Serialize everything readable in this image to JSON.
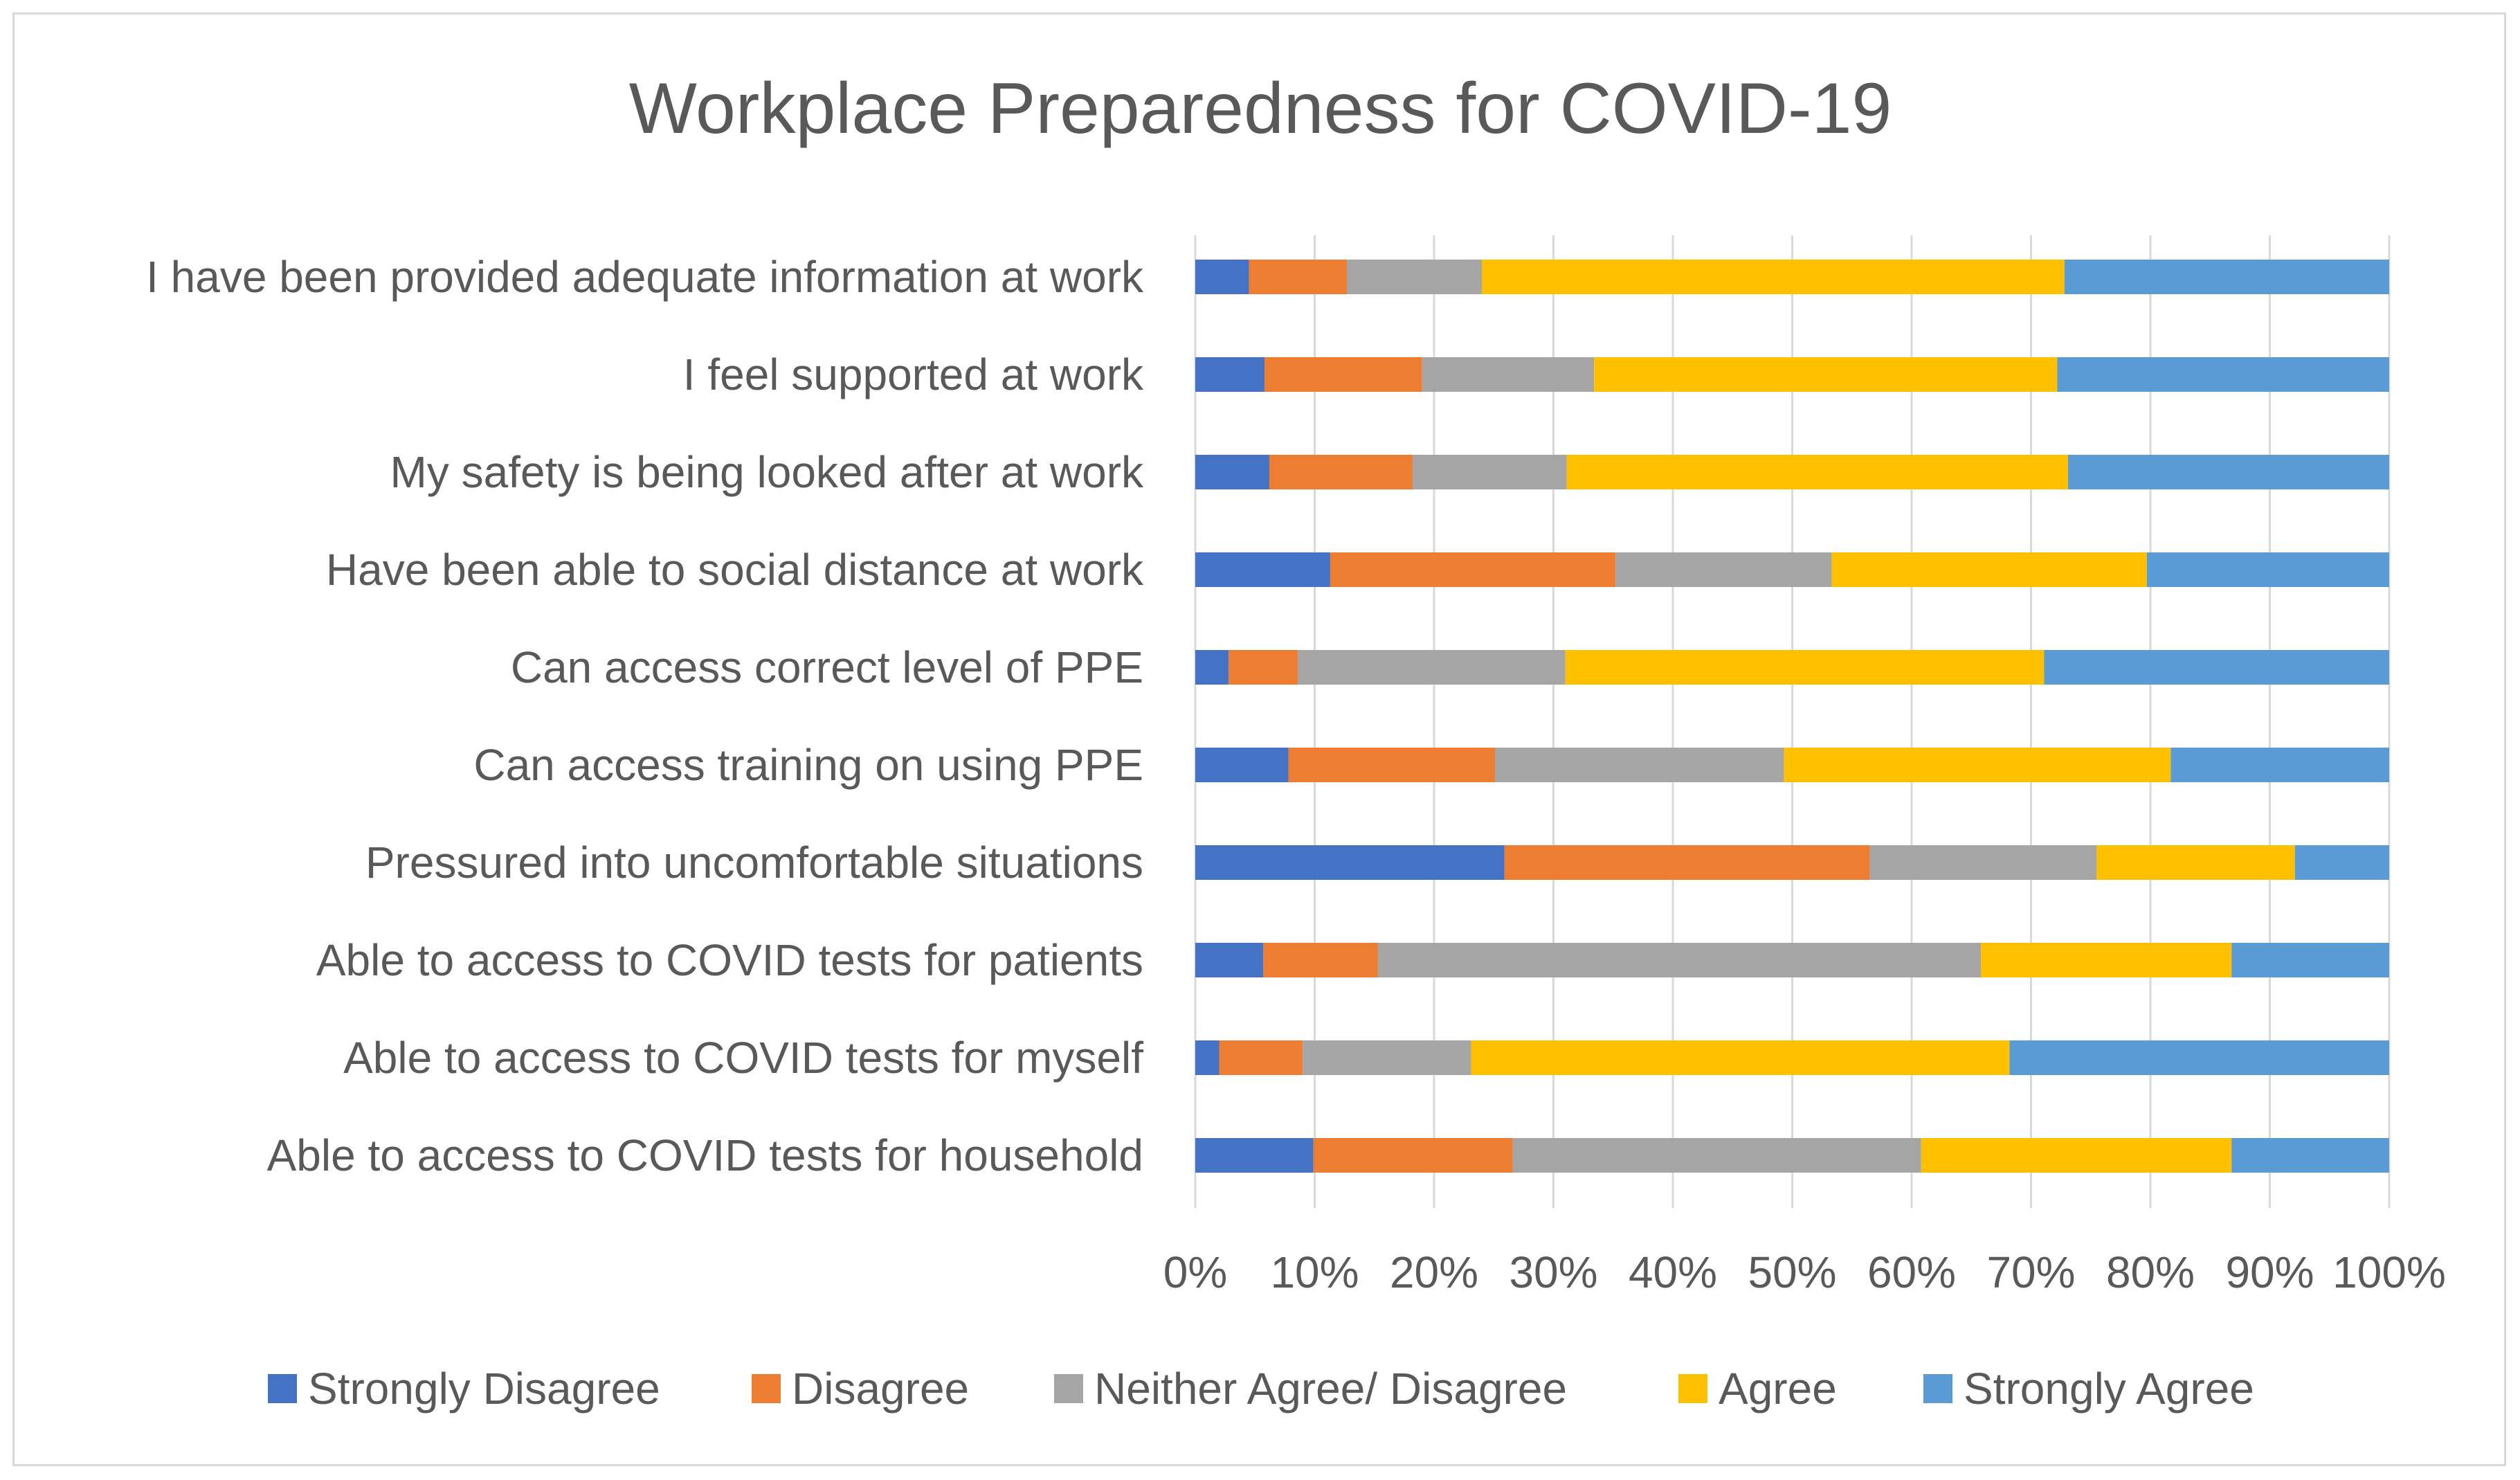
{
  "chart_data": {
    "type": "bar",
    "orientation": "horizontal",
    "stacked": "percent",
    "title": "Workplace Preparedness for COVID-19",
    "xlabel": "",
    "ylabel": "",
    "xlim": [
      0,
      100
    ],
    "x_ticks": [
      "0%",
      "10%",
      "20%",
      "30%",
      "40%",
      "50%",
      "60%",
      "70%",
      "80%",
      "90%",
      "100%"
    ],
    "grid": true,
    "legend_position": "bottom",
    "categories": [
      "I have been provided adequate information at work",
      "I feel supported at work",
      "My safety is being looked after at work",
      "Have been able to social distance at work",
      "Can access correct level of PPE",
      "Can access training on using PPE",
      "Pressured into uncomfortable situations",
      "Able to access to COVID tests for patients",
      "Able to access to COVID tests for myself",
      "Able to access to COVID tests for household"
    ],
    "series": [
      {
        "name": "Strongly Disagree",
        "color": "#4472c4",
        "values": [
          4.5,
          5.8,
          6.2,
          11.3,
          2.8,
          7.8,
          25.9,
          5.7,
          2.0,
          9.9
        ]
      },
      {
        "name": "Disagree",
        "color": "#ed7d31",
        "values": [
          8.2,
          13.2,
          12.0,
          23.9,
          5.8,
          17.3,
          30.6,
          9.6,
          7.0,
          16.7
        ]
      },
      {
        "name": "Neither Agree/ Disagree",
        "color": "#a5a5a5",
        "values": [
          11.3,
          14.4,
          12.9,
          18.1,
          22.4,
          24.2,
          19.0,
          50.5,
          14.1,
          34.2
        ]
      },
      {
        "name": "Agree",
        "color": "#ffc000",
        "values": [
          48.8,
          38.8,
          42.0,
          26.4,
          40.1,
          32.4,
          16.6,
          21.0,
          45.1,
          26.0
        ]
      },
      {
        "name": "Strongly Agree",
        "color": "#5b9bd5",
        "values": [
          27.2,
          27.8,
          26.9,
          20.3,
          28.9,
          18.3,
          7.9,
          13.2,
          31.8,
          13.2
        ]
      }
    ]
  }
}
